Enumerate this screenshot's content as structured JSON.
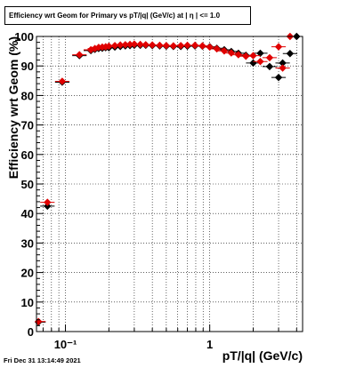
{
  "title": "Efficiency wrt Geom for Primary vs pT/|q| (GeV/c) at |  η  | <= 1.0",
  "footer_timestamp": "Fri Dec 31 13:14:49 2021",
  "chart_data": {
    "type": "scatter",
    "title": "Efficiency wrt Geom for Primary vs pT/|q| (GeV/c) at |  η  | <= 1.0",
    "xlabel": "pT/|q| (GeV/c)",
    "ylabel": "Efficiency wrt Geom (%)",
    "xscale": "log",
    "xlim": [
      0.063,
      4.4
    ],
    "ylim": [
      0,
      100
    ],
    "x_tick_labels": [
      {
        "value": 0.1,
        "label": "10⁻¹"
      },
      {
        "value": 1,
        "label": "1"
      }
    ],
    "y_ticks": [
      0,
      10,
      20,
      30,
      40,
      50,
      60,
      70,
      80,
      90,
      100
    ],
    "grid": true,
    "legend": "none",
    "series": [
      {
        "color": "#000000",
        "points": [
          [
            0.065,
            3.2
          ],
          [
            0.075,
            42.5
          ],
          [
            0.095,
            84.5
          ],
          [
            0.125,
            93.5
          ],
          [
            0.15,
            95.2
          ],
          [
            0.16,
            95.6
          ],
          [
            0.17,
            95.9
          ],
          [
            0.18,
            96.0
          ],
          [
            0.19,
            96.2
          ],
          [
            0.2,
            96.2
          ],
          [
            0.22,
            96.4
          ],
          [
            0.24,
            96.6
          ],
          [
            0.26,
            96.8
          ],
          [
            0.28,
            96.9
          ],
          [
            0.3,
            97.0
          ],
          [
            0.33,
            97.0
          ],
          [
            0.36,
            97.0
          ],
          [
            0.4,
            96.9
          ],
          [
            0.45,
            96.8
          ],
          [
            0.5,
            96.7
          ],
          [
            0.56,
            96.6
          ],
          [
            0.63,
            96.6
          ],
          [
            0.7,
            96.7
          ],
          [
            0.79,
            96.8
          ],
          [
            0.89,
            96.7
          ],
          [
            1.0,
            96.5
          ],
          [
            1.12,
            96.0
          ],
          [
            1.26,
            95.5
          ],
          [
            1.41,
            94.9
          ],
          [
            1.58,
            94.3
          ],
          [
            1.78,
            93.6
          ],
          [
            2.0,
            91.0
          ],
          [
            2.24,
            94.3
          ],
          [
            2.6,
            89.8
          ],
          [
            3.0,
            86.1
          ],
          [
            3.2,
            91.0
          ],
          [
            3.6,
            94.2
          ],
          [
            4.0,
            100.0
          ]
        ]
      },
      {
        "color": "#e00000",
        "points": [
          [
            0.065,
            3.4
          ],
          [
            0.075,
            43.8
          ],
          [
            0.095,
            84.8
          ],
          [
            0.125,
            93.8
          ],
          [
            0.15,
            95.5
          ],
          [
            0.16,
            95.9
          ],
          [
            0.17,
            96.3
          ],
          [
            0.18,
            96.4
          ],
          [
            0.19,
            96.5
          ],
          [
            0.2,
            96.7
          ],
          [
            0.22,
            96.9
          ],
          [
            0.24,
            97.1
          ],
          [
            0.26,
            97.2
          ],
          [
            0.28,
            97.3
          ],
          [
            0.3,
            97.4
          ],
          [
            0.33,
            97.3
          ],
          [
            0.36,
            97.2
          ],
          [
            0.4,
            97.1
          ],
          [
            0.45,
            97.0
          ],
          [
            0.5,
            96.9
          ],
          [
            0.56,
            96.8
          ],
          [
            0.63,
            96.9
          ],
          [
            0.7,
            97.0
          ],
          [
            0.79,
            97.0
          ],
          [
            0.89,
            96.8
          ],
          [
            1.0,
            96.4
          ],
          [
            1.12,
            95.8
          ],
          [
            1.26,
            95.1
          ],
          [
            1.41,
            94.4
          ],
          [
            1.58,
            93.8
          ],
          [
            1.78,
            93.3
          ],
          [
            2.0,
            93.5
          ],
          [
            2.24,
            91.5
          ],
          [
            2.6,
            92.8
          ],
          [
            3.0,
            96.5
          ],
          [
            3.2,
            89.3
          ],
          [
            3.6,
            100.0
          ]
        ]
      }
    ]
  }
}
